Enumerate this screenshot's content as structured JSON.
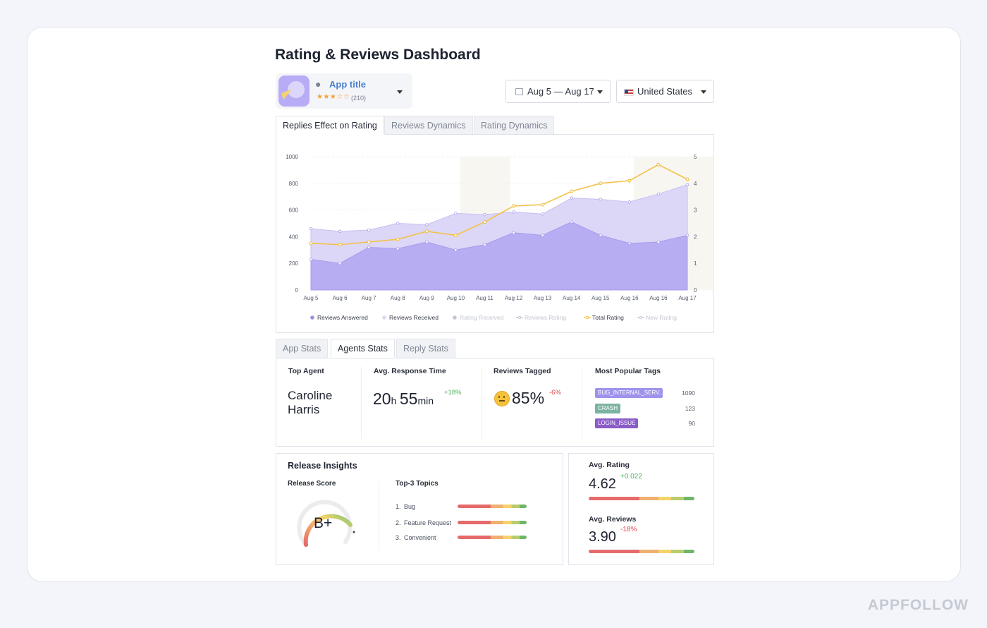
{
  "header": {
    "title": "Rating & Reviews Dashboard"
  },
  "app_selector": {
    "title": "App title",
    "stars": "★★★☆☆",
    "rating_count": "(210)",
    "platform_icon": "apple-icon"
  },
  "filters": {
    "date_range": "Aug 5 — Aug 17",
    "country": "United States"
  },
  "chart_tabs": [
    {
      "label": "Replies Effect on Rating",
      "active": true
    },
    {
      "label": "Reviews Dynamics",
      "active": false
    },
    {
      "label": "Rating Dynamics",
      "active": false
    }
  ],
  "chart_data": {
    "type": "area",
    "categories": [
      "Aug 5",
      "Aug 6",
      "Aug 7",
      "Aug 8",
      "Aug 9",
      "Aug 10",
      "Aug 11",
      "Aug 12",
      "Aug 13",
      "Aug 14",
      "Aug 15",
      "Aug 16",
      "Aug 16",
      "Aug 17"
    ],
    "y_left_ticks": [
      "0",
      "200",
      "400",
      "600",
      "800",
      "1000"
    ],
    "y_right_ticks": [
      "0",
      "1",
      "2",
      "3",
      "4",
      "5"
    ],
    "ylim_left": [
      0,
      1000
    ],
    "ylim_right": [
      0,
      5
    ],
    "highlight_ranges": [
      [
        "Aug 10",
        "Aug 11"
      ],
      [
        "Aug 16",
        "Aug 17"
      ]
    ],
    "series": [
      {
        "name": "Reviews Received",
        "axis": "left",
        "color": "#ddd7f7",
        "values": [
          460,
          440,
          450,
          500,
          490,
          575,
          565,
          585,
          570,
          690,
          680,
          660,
          720,
          790
        ]
      },
      {
        "name": "Reviews Answered",
        "axis": "left",
        "color": "#b7adf2",
        "values": [
          230,
          200,
          320,
          310,
          360,
          300,
          340,
          430,
          410,
          510,
          410,
          350,
          360,
          410
        ]
      },
      {
        "name": "Total Rating",
        "axis": "right",
        "color": "#f2c24a",
        "values": [
          1.75,
          1.7,
          1.8,
          1.9,
          2.2,
          2.05,
          2.55,
          3.15,
          3.2,
          3.7,
          4.0,
          4.1,
          4.7,
          4.15
        ]
      }
    ],
    "legend": [
      {
        "label": "Reviews Answered",
        "color": "#9d8fe0",
        "marker": "dot",
        "dim": false
      },
      {
        "label": "Reviews Received",
        "color": "#ddd7f7",
        "marker": "dot",
        "dim": false
      },
      {
        "label": "Rating Received",
        "color": "#c3c7d1",
        "marker": "dot",
        "dim": true
      },
      {
        "label": "Reviews Rating",
        "color": "#c3c7d1",
        "marker": "line",
        "dim": true
      },
      {
        "label": "Total Rating",
        "color": "#f2c24a",
        "marker": "line",
        "dim": false
      },
      {
        "label": "New Rating",
        "color": "#c3c7d1",
        "marker": "line",
        "dim": true
      }
    ],
    "legend_position": "bottom"
  },
  "stats_tabs": [
    {
      "label": "App Stats",
      "active": false
    },
    {
      "label": "Agents Stats",
      "active": true
    },
    {
      "label": "Reply Stats",
      "active": false
    }
  ],
  "agent_stats": {
    "top_agent_label": "Top Agent",
    "top_agent_name": "Caroline Harris",
    "response_label": "Avg. Response Time",
    "response_hours": "20",
    "response_hours_unit": "h",
    "response_minutes": "55",
    "response_minutes_unit": "min",
    "response_delta": "+18%",
    "tagged_label": "Reviews Tagged",
    "tagged_value": "85%",
    "tagged_delta": "-6%",
    "tags_label": "Most Popular Tags",
    "tags": [
      {
        "name": "BUG_INTERNAL_SERV...",
        "count": "1090",
        "color": "#9d93ec",
        "share": 1.0
      },
      {
        "name": "CRASH",
        "count": "123",
        "color": "#7bb3a3",
        "share": 0.38
      },
      {
        "name": "LOGIN_ISSUE",
        "count": "90",
        "color": "#8a5cc8",
        "share": 0.64
      }
    ]
  },
  "release_insights": {
    "title": "Release Insights",
    "score_label": "Release Score",
    "grade": "B+",
    "topics_label": "Top-3 Topics",
    "topics": [
      {
        "index": "1.",
        "name": "Bug"
      },
      {
        "index": "2.",
        "name": "Feature Request"
      },
      {
        "index": "3.",
        "name": "Convenient"
      }
    ]
  },
  "ratings": {
    "avg_rating_label": "Avg. Rating",
    "avg_rating_value": "4.62",
    "avg_rating_delta": "+0.022",
    "avg_reviews_label": "Avg. Reviews",
    "avg_reviews_value": "3.90",
    "avg_reviews_delta": "-18%"
  },
  "watermark": "APPFOLLOW"
}
